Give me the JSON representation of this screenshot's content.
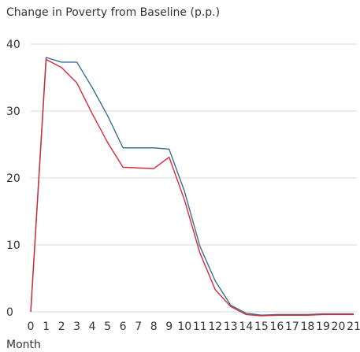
{
  "chart_data": {
    "type": "line",
    "title": "Change in Poverty from Baseline (p.p.)",
    "xlabel": "Month",
    "ylabel": "",
    "ylim": [
      0,
      40
    ],
    "yticks": [
      0,
      10,
      20,
      30,
      40
    ],
    "x": [
      0,
      1,
      2,
      3,
      4,
      5,
      6,
      7,
      8,
      9,
      10,
      11,
      12,
      13,
      14,
      15,
      16,
      17,
      18,
      19,
      20,
      21
    ],
    "grid": "horizontal",
    "series": [
      {
        "color": "#3a6f8f",
        "values": [
          0,
          38.0,
          37.3,
          37.3,
          33.5,
          29.3,
          24.5,
          24.5,
          24.5,
          24.3,
          18.0,
          9.8,
          4.6,
          1.0,
          -0.2,
          -0.5,
          -0.4,
          -0.4,
          -0.4,
          -0.3,
          -0.3,
          -0.3
        ]
      },
      {
        "color": "#d9283a",
        "values": [
          0,
          37.7,
          36.5,
          34.2,
          29.6,
          25.3,
          21.6,
          21.5,
          21.4,
          23.1,
          16.7,
          8.8,
          3.3,
          0.8,
          -0.4,
          -0.6,
          -0.5,
          -0.5,
          -0.5,
          -0.4,
          -0.4,
          -0.4
        ]
      }
    ]
  }
}
